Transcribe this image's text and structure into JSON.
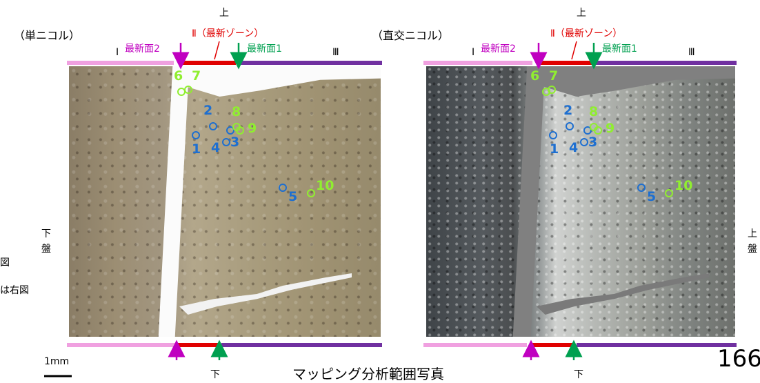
{
  "side_label_left_partial": [
    "図",
    "は右図"
  ],
  "left_panel": {
    "title": "（単ニコル）",
    "top_label": "上",
    "zone2": "Ⅱ（最新ゾーン）",
    "newest2": "最新面2",
    "newest1": "最新面1",
    "zone1": "Ⅰ",
    "zone3": "Ⅲ",
    "side_vertical": [
      "下",
      "盤"
    ],
    "bottom_label": "下",
    "points": [
      "6",
      "7",
      "2",
      "8",
      "9",
      "1",
      "4",
      "3",
      "5",
      "10"
    ]
  },
  "right_panel": {
    "title": "（直交ニコル）",
    "top_label": "上",
    "zone2": "Ⅱ（最新ゾーン）",
    "newest2": "最新面2",
    "newest1": "最新面1",
    "zone1": "Ⅰ",
    "zone3": "Ⅲ",
    "side_vertical": [
      "上",
      "盤"
    ],
    "bottom_label": "下",
    "points": [
      "6",
      "7",
      "2",
      "8",
      "9",
      "1",
      "4",
      "3",
      "5",
      "10"
    ]
  },
  "scale_label": "1mm",
  "caption": "マッピング分析範囲写真",
  "page_number": "166",
  "colors": {
    "zone1": "#f0a0e0",
    "zone2": "#e00000",
    "zone3": "#7030a0",
    "magenta_arrow": "#c000c0",
    "green_arrow": "#00a050",
    "blue_points": "#1e6fd0",
    "green_points": "#90ee30"
  }
}
